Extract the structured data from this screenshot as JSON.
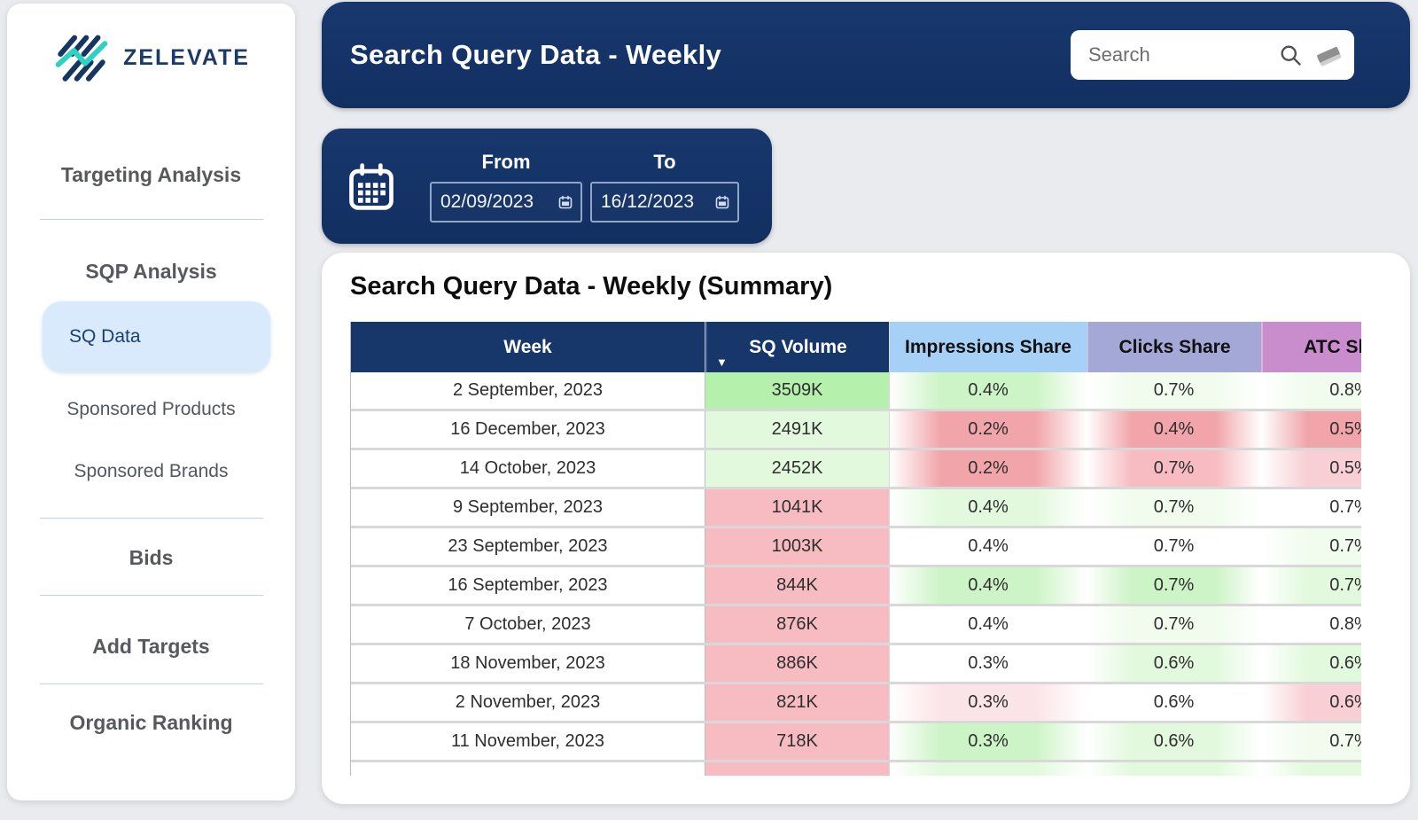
{
  "brand": {
    "name": "ZELEVATE"
  },
  "sidebar": {
    "items": [
      {
        "label": "Targeting Analysis"
      },
      {
        "label": "SQP Analysis"
      },
      {
        "label": "SQ Data"
      },
      {
        "label": "Sponsored Products"
      },
      {
        "label": "Sponsored Brands"
      },
      {
        "label": "Bids"
      },
      {
        "label": "Add Targets"
      },
      {
        "label": "Organic Ranking"
      }
    ],
    "active_item": "SQ Data"
  },
  "header": {
    "title": "Search Query Data - Weekly",
    "search_placeholder": "Search"
  },
  "datebar": {
    "from_label": "From",
    "to_label": "To",
    "from_value": "02/09/2023",
    "to_value": "16/12/2023"
  },
  "main": {
    "table_title": "Search Query Data - Weekly (Summary)"
  },
  "table": {
    "columns": [
      {
        "label": "Week",
        "bg": "#17376b",
        "fg": "#ffffff"
      },
      {
        "label": "SQ Volume",
        "bg": "#17376b",
        "fg": "#ffffff",
        "sort": "desc"
      },
      {
        "label": "Impressions Share",
        "bg": "#a6d0f5",
        "fg": "#111111"
      },
      {
        "label": "Clicks Share",
        "bg": "#a3a8d7",
        "fg": "#111111"
      },
      {
        "label": "ATC Share",
        "bg": "#c98ccd",
        "fg": "#111111"
      }
    ],
    "palette": {
      "white": "#ffffff",
      "green-3": "#b5f0ad",
      "green-2": "#cdf4c6",
      "green-1": "#e2f9dd",
      "green-0": "#f1fcee",
      "red-3": "#f1a5aa",
      "red-2": "#f6bcc1",
      "red-1": "#f8cfd4",
      "red-0": "#fbe4e7"
    },
    "rows": [
      {
        "week": "2 September, 2023",
        "sq_volume": "3509K",
        "impressions_share": "0.4%",
        "clicks_share": "0.7%",
        "atc_share": "0.8%",
        "tones": [
          "green-3",
          "green-2",
          "green-0",
          "green-0"
        ]
      },
      {
        "week": "16 December, 2023",
        "sq_volume": "2491K",
        "impressions_share": "0.2%",
        "clicks_share": "0.4%",
        "atc_share": "0.5%",
        "tones": [
          "green-1",
          "red-3",
          "red-3",
          "red-3"
        ]
      },
      {
        "week": "14 October, 2023",
        "sq_volume": "2452K",
        "impressions_share": "0.2%",
        "clicks_share": "0.7%",
        "atc_share": "0.5%",
        "tones": [
          "green-1",
          "red-3",
          "red-2",
          "red-1"
        ]
      },
      {
        "week": "9 September, 2023",
        "sq_volume": "1041K",
        "impressions_share": "0.4%",
        "clicks_share": "0.7%",
        "atc_share": "0.7%",
        "tones": [
          "red-2",
          "green-1",
          "green-0",
          "white"
        ]
      },
      {
        "week": "23 September, 2023",
        "sq_volume": "1003K",
        "impressions_share": "0.4%",
        "clicks_share": "0.7%",
        "atc_share": "0.7%",
        "tones": [
          "red-2",
          "white",
          "white",
          "green-0"
        ]
      },
      {
        "week": "16 September, 2023",
        "sq_volume": "844K",
        "impressions_share": "0.4%",
        "clicks_share": "0.7%",
        "atc_share": "0.7%",
        "tones": [
          "red-2",
          "green-2",
          "green-2",
          "green-1"
        ]
      },
      {
        "week": "7 October, 2023",
        "sq_volume": "876K",
        "impressions_share": "0.4%",
        "clicks_share": "0.7%",
        "atc_share": "0.8%",
        "tones": [
          "red-2",
          "white",
          "green-0",
          "white"
        ]
      },
      {
        "week": "18 November, 2023",
        "sq_volume": "886K",
        "impressions_share": "0.3%",
        "clicks_share": "0.6%",
        "atc_share": "0.6%",
        "tones": [
          "red-2",
          "white",
          "green-1",
          "green-1"
        ]
      },
      {
        "week": "2 November, 2023",
        "sq_volume": "821K",
        "impressions_share": "0.3%",
        "clicks_share": "0.6%",
        "atc_share": "0.6%",
        "tones": [
          "red-2",
          "red-0",
          "white",
          "red-1"
        ]
      },
      {
        "week": "11 November, 2023",
        "sq_volume": "718K",
        "impressions_share": "0.3%",
        "clicks_share": "0.6%",
        "atc_share": "0.7%",
        "tones": [
          "red-2",
          "green-2",
          "green-1",
          "green-0"
        ]
      },
      {
        "week": "",
        "sq_volume": "",
        "impressions_share": "",
        "clicks_share": "",
        "atc_share": "",
        "tones": [
          "red-2",
          "green-1",
          "green-1",
          "green-1"
        ]
      }
    ]
  }
}
